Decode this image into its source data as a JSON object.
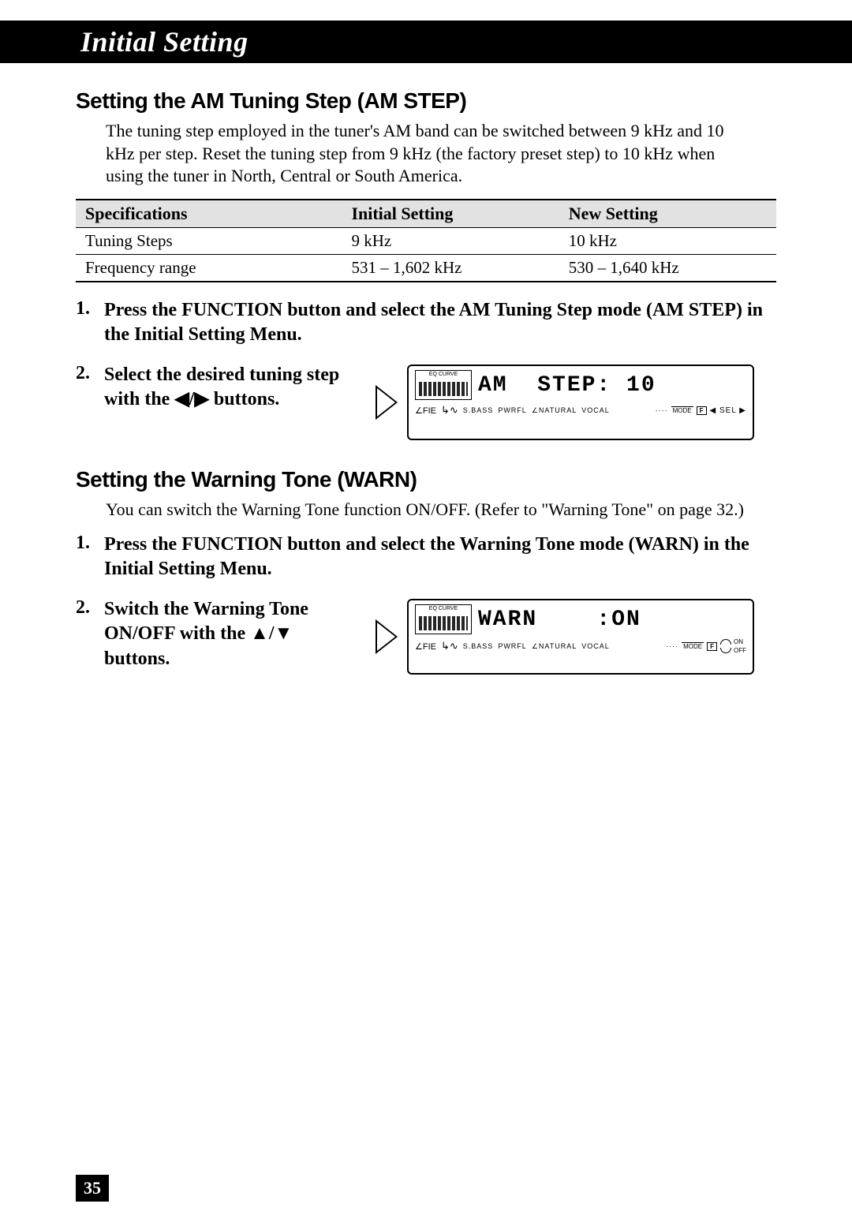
{
  "header": {
    "title": "Initial Setting"
  },
  "am_step": {
    "heading": "Setting the AM Tuning Step (AM STEP)",
    "intro": "The tuning step employed in the tuner's AM band can be switched between 9 kHz and 10 kHz per step. Reset the tuning step from 9 kHz (the factory preset step) to 10 kHz when using the tuner in North, Central or South America.",
    "table": {
      "columns": [
        "Specifications",
        "Initial Setting",
        "New Setting"
      ],
      "rows": [
        [
          "Tuning Steps",
          "9 kHz",
          "10 kHz"
        ],
        [
          "Frequency range",
          "531 – 1,602 kHz",
          "530 – 1,640 kHz"
        ]
      ]
    },
    "steps": [
      "Press the FUNCTION button and select the AM Tuning Step mode (AM STEP) in the Initial Setting Menu.",
      "Select the desired tuning step with the ◀/▶ buttons."
    ],
    "display": {
      "main_text": "AM  STEP: 10",
      "eq_label": "EQ CURVE",
      "labels": {
        "sbass": "S.BASS",
        "pwrfl": "PWRFL",
        "natural": "NATURAL",
        "vocal": "VOCAL",
        "fie": "FIE",
        "mode": "MODE",
        "f": "F",
        "sel": "SEL",
        "dots": "····"
      }
    }
  },
  "warn": {
    "heading": "Setting the Warning Tone (WARN)",
    "intro": "You can switch the Warning Tone function ON/OFF. (Refer to \"Warning Tone\" on page 32.)",
    "steps": [
      "Press the FUNCTION button and select the Warning Tone mode (WARN) in the Initial Setting Menu.",
      "Switch the Warning Tone ON/OFF with the ▲/▼ buttons."
    ],
    "display": {
      "main_text": "WARN    :ON",
      "eq_label": "EQ CURVE",
      "labels": {
        "sbass": "S.BASS",
        "pwrfl": "PWRFL",
        "natural": "NATURAL",
        "vocal": "VOCAL",
        "fie": "FIE",
        "mode": "MODE",
        "f": "F",
        "on": "ON",
        "off": "OFF",
        "dots": "····"
      }
    }
  },
  "page_number": "35",
  "colors": {
    "black": "#000000",
    "white": "#ffffff",
    "grey_header": "#e2e2e2"
  }
}
